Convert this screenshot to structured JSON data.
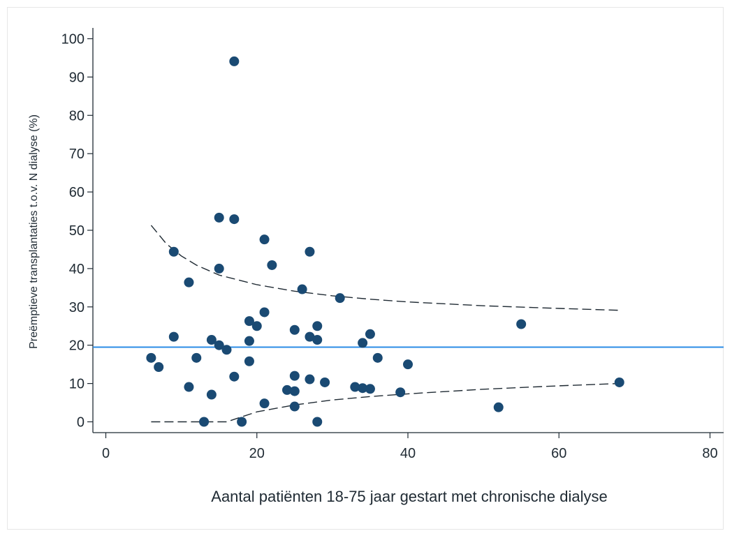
{
  "chart_data": {
    "type": "scatter",
    "title": "",
    "xlabel": "Aantal patiënten 18-75 jaar gestart met chronische dialyse",
    "ylabel": "Preëmptieve transplantaties t.o.v. N dialyse (%)",
    "xlim": [
      0,
      80
    ],
    "ylim": [
      0,
      100
    ],
    "x_ticks": [
      0,
      20,
      40,
      60,
      80
    ],
    "y_ticks": [
      0,
      10,
      20,
      30,
      40,
      50,
      60,
      70,
      80,
      90,
      100
    ],
    "grid": false,
    "series": [
      {
        "kind": "points",
        "color": "#1a4a73",
        "points": [
          [
            6,
            16.7
          ],
          [
            7,
            14.3
          ],
          [
            9,
            44.4
          ],
          [
            9,
            22.2
          ],
          [
            11,
            36.4
          ],
          [
            11,
            9.1
          ],
          [
            12,
            16.7
          ],
          [
            13,
            0
          ],
          [
            14,
            21.4
          ],
          [
            14,
            7.1
          ],
          [
            15,
            53.3
          ],
          [
            15,
            40
          ],
          [
            15,
            20
          ],
          [
            16,
            18.8
          ],
          [
            17,
            94.1
          ],
          [
            17,
            52.9
          ],
          [
            17,
            11.8
          ],
          [
            18,
            0
          ],
          [
            19,
            26.3
          ],
          [
            19,
            21.1
          ],
          [
            19,
            15.8
          ],
          [
            20,
            25
          ],
          [
            21,
            47.6
          ],
          [
            21,
            28.6
          ],
          [
            21,
            4.8
          ],
          [
            22,
            40.9
          ],
          [
            24,
            8.3
          ],
          [
            25,
            24
          ],
          [
            25,
            12
          ],
          [
            25,
            8
          ],
          [
            25,
            4
          ],
          [
            26,
            34.6
          ],
          [
            27,
            44.4
          ],
          [
            27,
            22.2
          ],
          [
            27,
            11.1
          ],
          [
            28,
            25
          ],
          [
            28,
            21.4
          ],
          [
            28,
            0
          ],
          [
            29,
            10.3
          ],
          [
            31,
            32.3
          ],
          [
            33,
            9.1
          ],
          [
            34,
            20.6
          ],
          [
            34,
            8.8
          ],
          [
            35,
            22.9
          ],
          [
            35,
            8.6
          ],
          [
            36,
            16.7
          ],
          [
            39,
            7.7
          ],
          [
            40,
            15
          ],
          [
            52,
            3.8
          ],
          [
            55,
            25.5
          ],
          [
            68,
            10.3
          ]
        ]
      },
      {
        "kind": "reference-line",
        "color": "#2b8ce6",
        "y": 19.5
      },
      {
        "kind": "upper-limit",
        "color": "#1f2a33",
        "points": [
          [
            6,
            51.3
          ],
          [
            8,
            46.5
          ],
          [
            10,
            43.3
          ],
          [
            12,
            40.9
          ],
          [
            15,
            38.3
          ],
          [
            20,
            35.8
          ],
          [
            25,
            34.1
          ],
          [
            30,
            32.9
          ],
          [
            35,
            32
          ],
          [
            40,
            31.3
          ],
          [
            50,
            30.3
          ],
          [
            60,
            29.6
          ],
          [
            68,
            29.1
          ]
        ]
      },
      {
        "kind": "lower-limit",
        "color": "#1f2a33",
        "points": [
          [
            6,
            0
          ],
          [
            10,
            0
          ],
          [
            15,
            0
          ],
          [
            16,
            0
          ],
          [
            18,
            1.3
          ],
          [
            20,
            2.6
          ],
          [
            25,
            4.4
          ],
          [
            30,
            5.7
          ],
          [
            35,
            6.6
          ],
          [
            40,
            7.3
          ],
          [
            50,
            8.5
          ],
          [
            60,
            9.4
          ],
          [
            68,
            10
          ]
        ]
      }
    ]
  }
}
